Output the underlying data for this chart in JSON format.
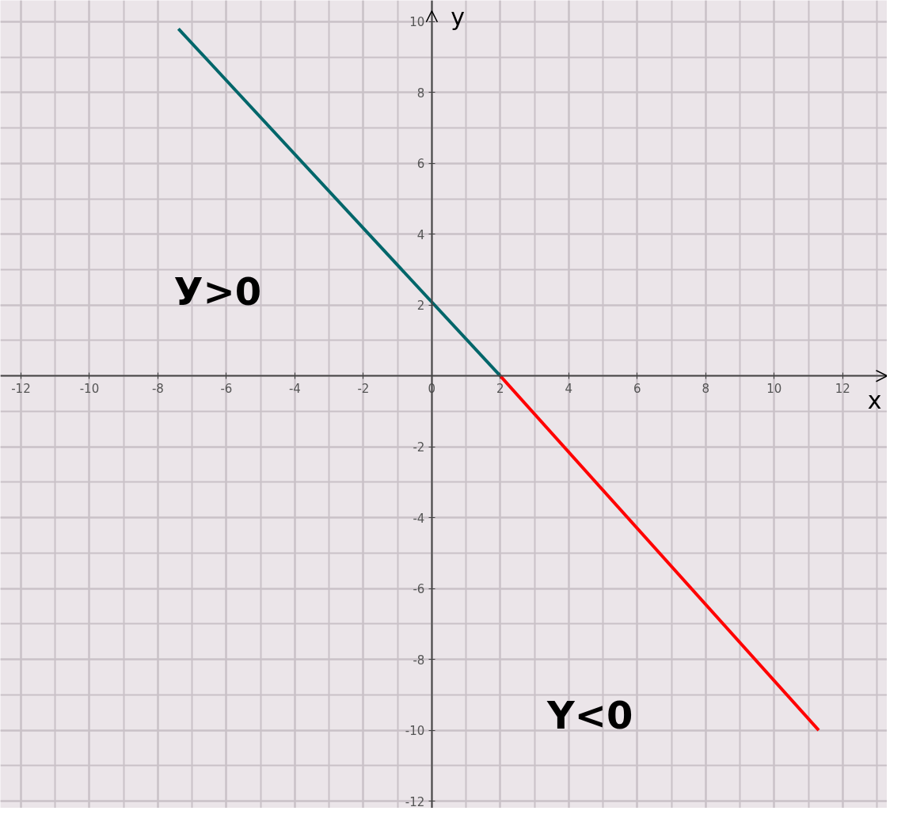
{
  "chart_data": {
    "type": "line",
    "xlabel": "x",
    "ylabel": "y",
    "xlim": [
      -12.6,
      13.3
    ],
    "ylim": [
      -12.2,
      10.6
    ],
    "xticks": [
      -12,
      -10,
      -8,
      -6,
      -4,
      -2,
      0,
      2,
      4,
      6,
      8,
      10,
      12
    ],
    "yticks": [
      -12,
      -10,
      -8,
      -6,
      -4,
      -2,
      2,
      4,
      6,
      8,
      10
    ],
    "grid": true,
    "marker": "none",
    "line_style": "solid",
    "series": [
      {
        "color": "#00666a",
        "x": [
          -7.4,
          2
        ],
        "values": [
          9.8,
          0
        ]
      },
      {
        "color": "#ff0000",
        "x": [
          2,
          11.3
        ],
        "values": [
          0,
          -10
        ]
      }
    ],
    "annotations": [
      "У>0",
      "Y<0"
    ]
  }
}
